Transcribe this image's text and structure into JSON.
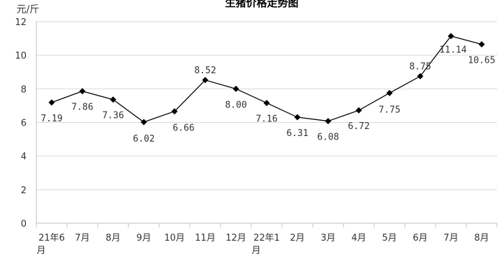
{
  "chart_data": {
    "type": "line",
    "title": "生猪价格走势图",
    "ylabel": "元/斤",
    "xlabel": "",
    "categories": [
      "21年6月",
      "7月",
      "8月",
      "9月",
      "10月",
      "11月",
      "12月",
      "22年1月",
      "2月",
      "3月",
      "4月",
      "5月",
      "6月",
      "7月",
      "8月"
    ],
    "series": [
      {
        "values": [
          7.19,
          7.86,
          7.36,
          6.02,
          6.66,
          8.52,
          8.0,
          7.16,
          6.31,
          6.08,
          6.72,
          7.75,
          8.75,
          11.14,
          10.65
        ]
      }
    ],
    "data_labels": [
      "7.19",
      "7.86",
      "7.36",
      "6.02",
      "6.66",
      "8.52",
      "8.00",
      "7.16",
      "6.31",
      "6.08",
      "6.72",
      "7.75",
      "8.75",
      "11.14",
      "10.65"
    ],
    "ylim": [
      0,
      12
    ],
    "yticks": [
      0,
      2,
      4,
      6,
      8,
      10,
      12
    ],
    "grid": true,
    "legend": "none",
    "colors": {
      "line": "#000000",
      "marker": "#000000",
      "grid": "#d9d9d9",
      "axis": "#bfbfbf"
    }
  }
}
